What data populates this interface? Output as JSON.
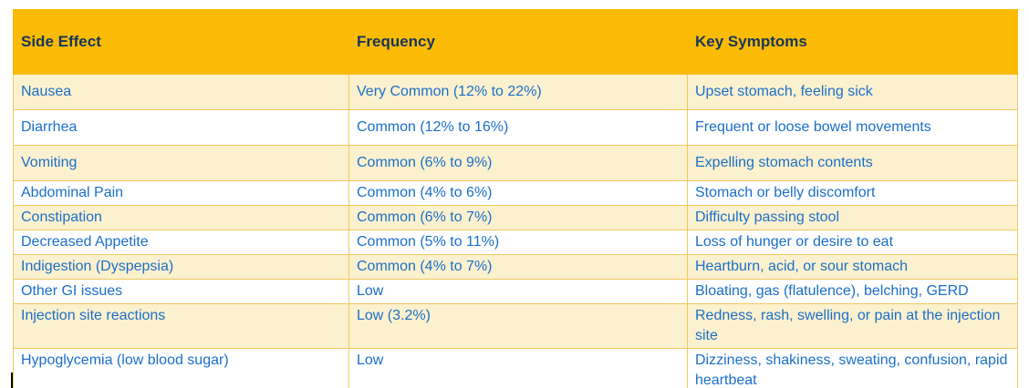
{
  "colors": {
    "header_bg": "#FBBB04",
    "header_text": "#17365D",
    "row_alt_bg": "#FCF1CF",
    "row_bg": "#FFFFFF",
    "body_text": "#1B6FC9",
    "border": "#F1C85D"
  },
  "table": {
    "columns": [
      {
        "label": "Side Effect"
      },
      {
        "label": "Frequency"
      },
      {
        "label": "Key Symptoms"
      }
    ],
    "rows": [
      {
        "side_effect": "Nausea",
        "frequency": "Very Common (12% to 22%)",
        "symptoms": "Upset stomach, feeling sick"
      },
      {
        "side_effect": "Diarrhea",
        "frequency": "Common (12% to 16%)",
        "symptoms": "Frequent or loose bowel movements"
      },
      {
        "side_effect": "Vomiting",
        "frequency": "Common (6% to 9%)",
        "symptoms": "Expelling stomach contents"
      },
      {
        "side_effect": "Abdominal Pain",
        "frequency": "Common (4% to 6%)",
        "symptoms": "Stomach or belly discomfort"
      },
      {
        "side_effect": "Constipation",
        "frequency": "Common (6% to 7%)",
        "symptoms": "Difficulty passing stool"
      },
      {
        "side_effect": "Decreased Appetite",
        "frequency": "Common (5% to 11%)",
        "symptoms": "Loss of hunger or desire to eat"
      },
      {
        "side_effect": "Indigestion (Dyspepsia)",
        "frequency": "Common (4% to 7%)",
        "symptoms": "Heartburn, acid, or sour stomach"
      },
      {
        "side_effect": "Other GI issues",
        "frequency": "Low",
        "symptoms": "Bloating, gas (flatulence), belching, GERD"
      },
      {
        "side_effect": "Injection site reactions",
        "frequency": "Low (3.2%)",
        "symptoms": "Redness, rash, swelling, or pain at the injection site"
      },
      {
        "side_effect": "Hypoglycemia (low blood sugar)",
        "frequency": "Low",
        "symptoms": "Dizziness, shakiness, sweating, confusion, rapid heartbeat"
      }
    ]
  }
}
